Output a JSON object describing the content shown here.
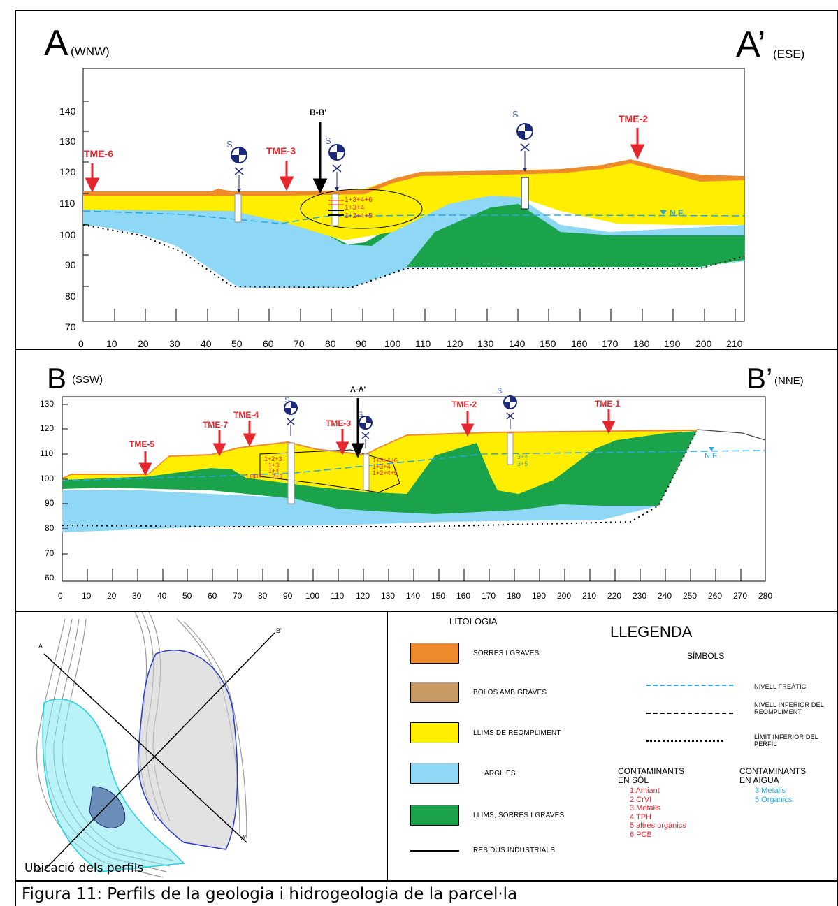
{
  "colors": {
    "sorres": "#ef8a2c",
    "llims_reompliment": "#ffee00",
    "argiles": "#8fd8f5",
    "llims_sorres_graves": "#1aa34a",
    "bolos": "#c79a64",
    "nivell_freatic": "#2ba7e0",
    "tme_red": "#e5262d",
    "survey_blue": "#1d2a7a"
  },
  "profile_a": {
    "start_letter": "A",
    "start_dir": "(WNW)",
    "end_letter": "A’",
    "end_dir": "(ESE)",
    "y_ticks": [
      "140",
      "130",
      "120",
      "110",
      "100",
      "90",
      "80",
      "70"
    ],
    "x_ticks": [
      "0",
      "10",
      "20",
      "30",
      "40",
      "50",
      "60",
      "70",
      "80",
      "90",
      "100",
      "110",
      "120",
      "130",
      "140",
      "150",
      "160",
      "170",
      "180",
      "190",
      "200",
      "210"
    ],
    "markers": {
      "tme6": "TME-6",
      "tme3": "TME-3",
      "tme2": "TME-2",
      "cross": "B-B'",
      "nf": "N.F."
    },
    "sondeig": {
      "s13": "S",
      "s05": "S",
      "s07": "S"
    },
    "annotations": [
      "1+3+4+6",
      "1+3+4",
      "1+2+4+5"
    ]
  },
  "profile_b": {
    "start_letter": "B",
    "start_dir": "(SSW)",
    "end_letter": "B’",
    "end_dir": "(NNE)",
    "y_ticks": [
      "130",
      "120",
      "110",
      "100",
      "90",
      "80",
      "70",
      "60"
    ],
    "x_ticks": [
      "0",
      "10",
      "20",
      "30",
      "40",
      "50",
      "60",
      "70",
      "80",
      "90",
      "100",
      "110",
      "120",
      "130",
      "140",
      "150",
      "160",
      "170",
      "180",
      "190",
      "200",
      "210",
      "220",
      "230",
      "240",
      "250",
      "260",
      "270",
      "280"
    ],
    "markers": {
      "tme5": "TME-5",
      "tme7": "TME-7",
      "tme4": "TME-4",
      "tme3": "TME-3",
      "tme2": "TME-2",
      "tme1": "TME-1",
      "cross": "A-A'",
      "nf": "N.F."
    },
    "sondeig": {
      "s10": "S",
      "s05": "S",
      "s12": "S"
    },
    "annotations_left": [
      "1+2+3",
      "1+3",
      "1+4",
      "1+4+5",
      "2+3"
    ],
    "annotations_mid": [
      "1+3+4+6",
      "1+3+4",
      "1+2+4+5"
    ],
    "annotations_water": [
      "3+4",
      "3+5"
    ]
  },
  "map": {
    "ubicacio": "Ubicació dels perfils",
    "labels": {
      "a": "A",
      "a2": "A'",
      "b": "B",
      "b2": "B'"
    }
  },
  "legend": {
    "litologia": "LITOLOGIA",
    "title": "LLEGENDA",
    "simbols": "SÍMBOLS",
    "litho": [
      {
        "label": "SORRES I GRAVES",
        "color": "#ef8a2c"
      },
      {
        "label": "BOLOS AMB GRAVES",
        "color": "#c79a64"
      },
      {
        "label": "LLIMS DE REOMPLIMENT",
        "color": "#ffee00"
      },
      {
        "label": "ARGILES",
        "color": "#8fd8f5"
      },
      {
        "label": "LLIMS, SORRES I GRAVES",
        "color": "#1aa34a"
      },
      {
        "label": "RESIDUS INDUSTRIALS"
      }
    ],
    "symbols": [
      {
        "label": "NIVELL FREÀTIC"
      },
      {
        "label": "NIVELL INFERIOR DEL REOMPLIMENT"
      },
      {
        "label": "LÍMIT INFERIOR DEL PERFIL"
      }
    ],
    "soil_title": [
      "CONTAMINANTS",
      "EN SÒL"
    ],
    "soil": [
      "1 Amiant",
      "2 CrVI",
      "3 Metalls",
      "4 TPH",
      "5 altres orgànics",
      "6 PCB"
    ],
    "water_title": [
      "CONTAMINANTS",
      "EN AIGUA"
    ],
    "water": [
      "3 Metalls",
      "5 Organics"
    ]
  },
  "caption": "Figura 11: Perfils de la geologia i hidrogeologia de la parcel·la"
}
